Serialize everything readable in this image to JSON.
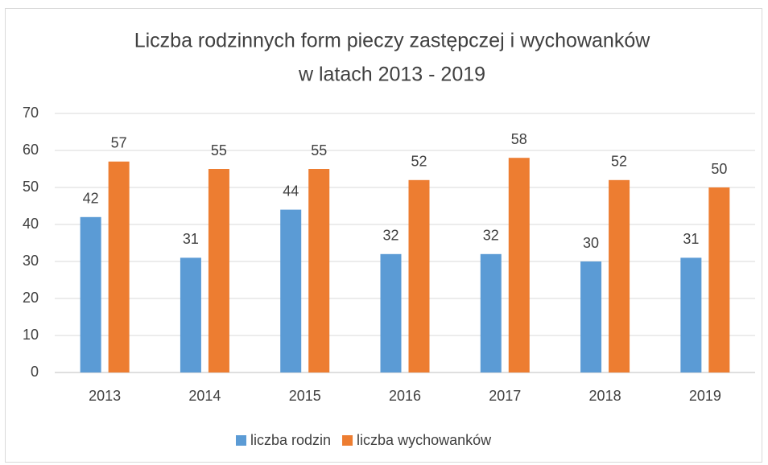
{
  "chart_data": {
    "type": "bar",
    "title": [
      "Liczba rodzinnych form pieczy zastępczej i wychowanków",
      "w latach 2013 - 2019"
    ],
    "categories": [
      "2013",
      "2014",
      "2015",
      "2016",
      "2017",
      "2018",
      "2019"
    ],
    "series": [
      {
        "name": "liczba rodzin",
        "color": "#5b9bd5",
        "values": [
          42,
          31,
          44,
          32,
          32,
          30,
          31
        ]
      },
      {
        "name": "liczba wychowanków",
        "color": "#ed7d31",
        "values": [
          57,
          55,
          55,
          52,
          58,
          52,
          50
        ]
      }
    ],
    "ylim": [
      0,
      70
    ],
    "yticks": [
      0,
      10,
      20,
      30,
      40,
      50,
      60,
      70
    ],
    "grid": true,
    "legend": "bottom"
  }
}
